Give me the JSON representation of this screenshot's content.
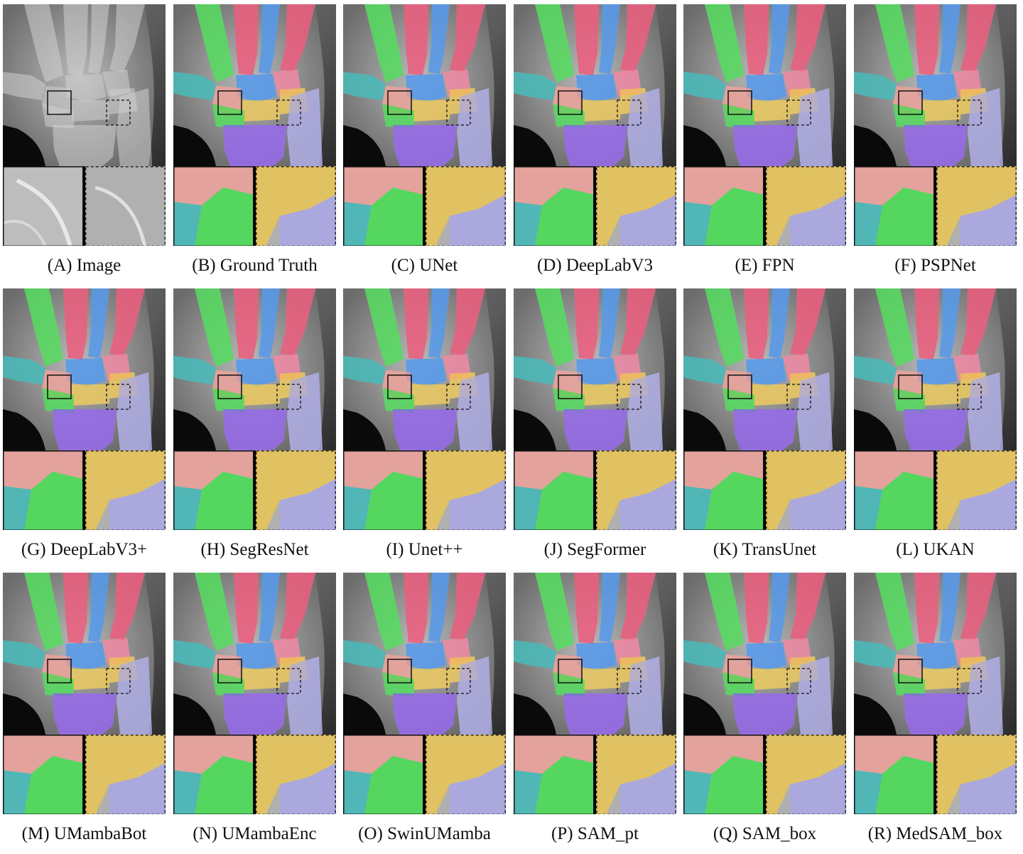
{
  "panels": [
    {
      "caption": "(A) Image",
      "overlay": false
    },
    {
      "caption": "(B) Ground Truth",
      "overlay": true
    },
    {
      "caption": "(C) UNet",
      "overlay": true
    },
    {
      "caption": "(D) DeepLabV3",
      "overlay": true
    },
    {
      "caption": "(E) FPN",
      "overlay": true
    },
    {
      "caption": "(F) PSPNet",
      "overlay": true
    },
    {
      "caption": "(G) DeepLabV3+",
      "overlay": true
    },
    {
      "caption": "(H) SegResNet",
      "overlay": true
    },
    {
      "caption": "(I) Unet++",
      "overlay": true
    },
    {
      "caption": "(J) SegFormer",
      "overlay": true
    },
    {
      "caption": "(K) TransUnet",
      "overlay": true
    },
    {
      "caption": "(L) UKAN",
      "overlay": true
    },
    {
      "caption": "(M) UMambaBot",
      "overlay": true
    },
    {
      "caption": "(N) UMambaEnc",
      "overlay": true
    },
    {
      "caption": "(O) SwinUMamba",
      "overlay": true
    },
    {
      "caption": "(P) SAM_pt",
      "overlay": true
    },
    {
      "caption": "(Q) SAM_box",
      "overlay": true
    },
    {
      "caption": "(R) MedSAM_box",
      "overlay": true
    }
  ],
  "colors": {
    "green": "#3ddc4a",
    "red": "#f0466e",
    "blue": "#3d8ef0",
    "teal": "#2eb4b4",
    "salmon": "#f09a90",
    "yellow": "#f0c84a",
    "purple": "#8a56f0",
    "lavender": "#a9a6e8",
    "pink": "#f47a9a"
  }
}
